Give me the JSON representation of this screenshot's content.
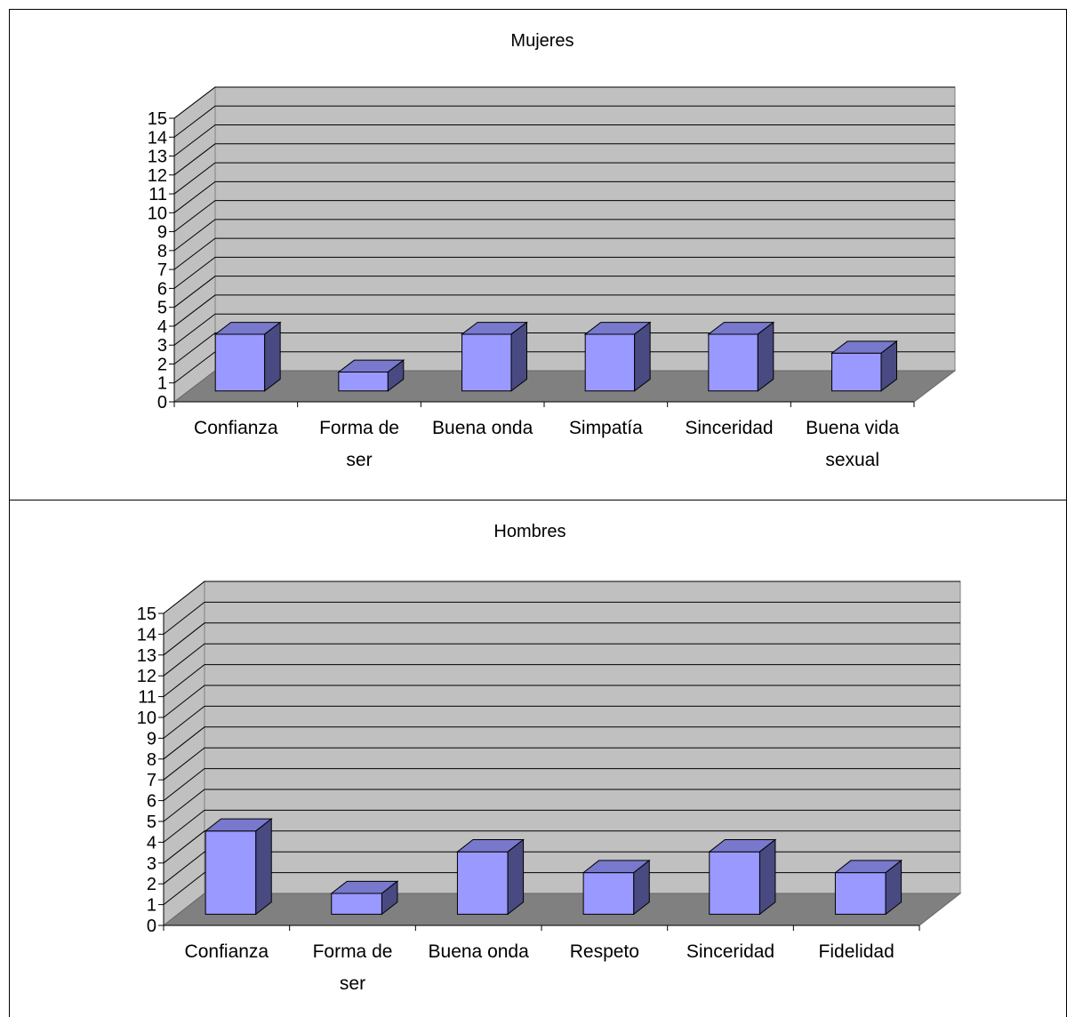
{
  "chart_data": [
    {
      "type": "bar",
      "title": "Mujeres",
      "categories": [
        "Confianza",
        "Forma de ser",
        "Buena onda",
        "Simpatía",
        "Sinceridad",
        "Buena vida sexual"
      ],
      "values": [
        3,
        1,
        3,
        3,
        3,
        2
      ],
      "ylim": [
        0,
        15
      ],
      "yticks": [
        0,
        1,
        2,
        3,
        4,
        5,
        6,
        7,
        8,
        9,
        10,
        11,
        12,
        13,
        14,
        15
      ],
      "grid": true,
      "legend": "none",
      "bar_color": "#9999ff",
      "wall_color": "#c0c0c0",
      "floor_color": "#808080"
    },
    {
      "type": "bar",
      "title": "Hombres",
      "categories": [
        "Confianza",
        "Forma de ser",
        "Buena onda",
        "Respeto",
        "Sinceridad",
        "Fidelidad"
      ],
      "values": [
        4,
        1,
        3,
        2,
        3,
        2
      ],
      "ylim": [
        0,
        15
      ],
      "yticks": [
        0,
        1,
        2,
        3,
        4,
        5,
        6,
        7,
        8,
        9,
        10,
        11,
        12,
        13,
        14,
        15
      ],
      "grid": true,
      "legend": "none",
      "bar_color": "#9999ff",
      "wall_color": "#c0c0c0",
      "floor_color": "#808080"
    }
  ]
}
